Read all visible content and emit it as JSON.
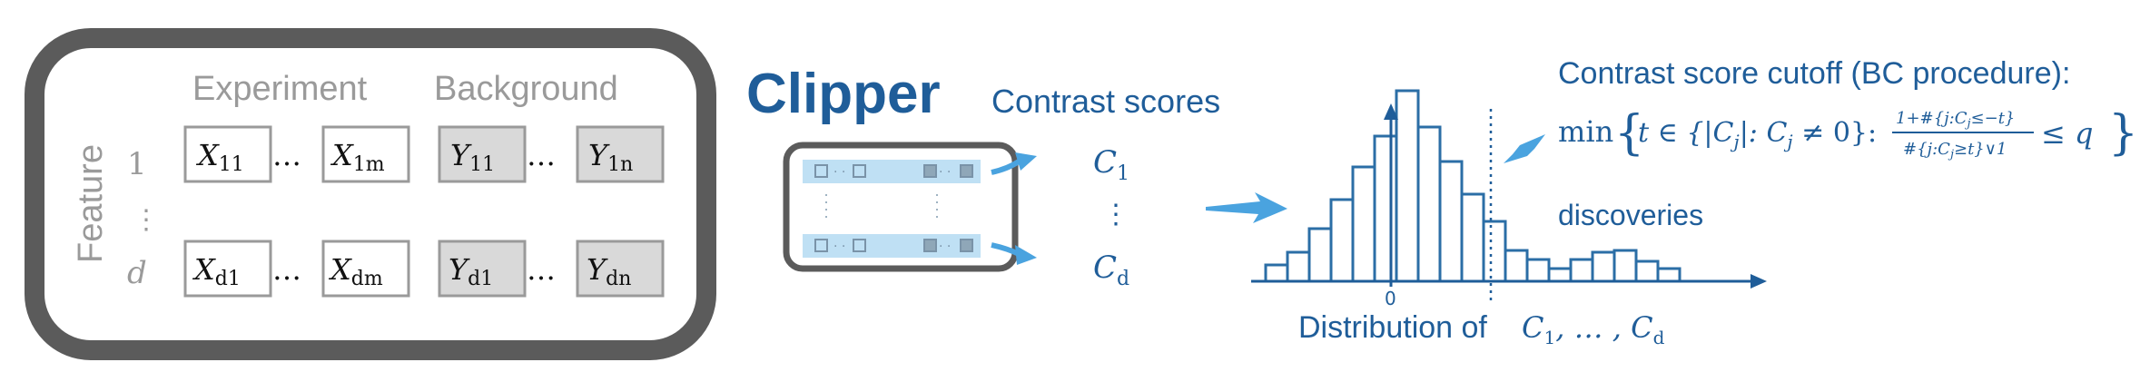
{
  "data_matrix": {
    "experiment_label": "Experiment",
    "background_label": "Background",
    "feature_label": "Feature",
    "row_index_first": "1",
    "row_index_last": "d",
    "vertical_ellipsis": "⋮",
    "row1": {
      "exp_first": {
        "base": "X",
        "sub": "11"
      },
      "exp_last": {
        "base": "X",
        "sub": "1m"
      },
      "bg_first": {
        "base": "Y",
        "sub": "11"
      },
      "bg_last": {
        "base": "Y",
        "sub": "1n"
      }
    },
    "row2": {
      "exp_first": {
        "base": "X",
        "sub": "d1"
      },
      "exp_last": {
        "base": "X",
        "sub": "dm"
      },
      "bg_first": {
        "base": "Y",
        "sub": "d1"
      },
      "bg_last": {
        "base": "Y",
        "sub": "dn"
      }
    },
    "ellipsis": "…"
  },
  "clipper": {
    "title": "Clipper",
    "contrast_scores_label": "Contrast scores",
    "score_first": {
      "base": "C",
      "sub": "1"
    },
    "score_last": {
      "base": "C",
      "sub": "d"
    },
    "score_ellipsis": "⋮"
  },
  "histogram": {
    "cutoff_title": "Contrast score cutoff (BC procedure):",
    "formula": {
      "min": "min",
      "set_expr": "t ∈ {|C",
      "set_expr2": "|: C",
      "set_expr3": " ≠ 0}:",
      "sub_j": "j",
      "numerator": "1+#{j:C",
      "numerator2": "≤−t}",
      "denominator": "#{j:C",
      "denominator2": "≥t}∨1",
      "leq_q": "≤ q"
    },
    "discoveries_label": "discoveries",
    "zero_tick": "0",
    "distribution_label": "Distribution of",
    "distribution_expr": "C",
    "distribution_sub1": "1",
    "distribution_mid": ", … , C",
    "distribution_sub2": "d",
    "colors": {
      "accent": "#1f5d99",
      "arrow": "#4aa3df",
      "bar": "#2b6ea6"
    }
  }
}
